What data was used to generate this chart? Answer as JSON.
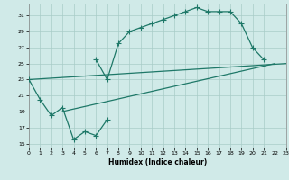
{
  "title": "",
  "xlabel": "Humidex (Indice chaleur)",
  "ylabel": "",
  "background_color": "#d0eae8",
  "grid_color": "#a8ccc8",
  "line_color": "#1e7868",
  "xlim": [
    0,
    23
  ],
  "ylim": [
    14.5,
    32.5
  ],
  "xticks": [
    0,
    1,
    2,
    3,
    4,
    5,
    6,
    7,
    8,
    9,
    10,
    11,
    12,
    13,
    14,
    15,
    16,
    17,
    18,
    19,
    20,
    21,
    22,
    23
  ],
  "yticks": [
    15,
    17,
    19,
    21,
    23,
    25,
    27,
    29,
    31
  ],
  "line1_x": [
    0,
    1,
    2,
    3,
    4,
    5,
    6,
    7
  ],
  "line1_y": [
    23,
    20.5,
    18.5,
    19.5,
    15.5,
    16.5,
    16.0,
    18.0
  ],
  "line2_x": [
    6,
    7,
    8,
    9,
    10,
    11,
    12,
    13,
    14,
    15,
    16,
    17,
    18,
    19,
    20,
    21
  ],
  "line2_y": [
    25.5,
    23.0,
    27.5,
    29.0,
    29.5,
    30.0,
    30.5,
    31.0,
    31.5,
    32.0,
    31.5,
    31.5,
    31.5,
    30.0,
    27.0,
    25.5
  ],
  "line3_x": [
    3,
    22
  ],
  "line3_y": [
    19.0,
    25.0
  ],
  "line4_x": [
    0,
    23
  ],
  "line4_y": [
    23.0,
    25.0
  ]
}
